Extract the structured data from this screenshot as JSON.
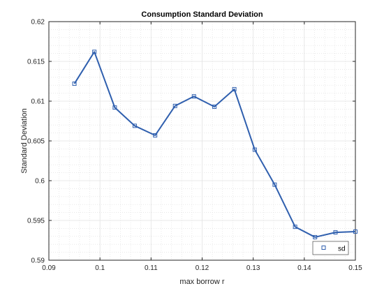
{
  "chart_data": {
    "type": "line",
    "title": "Consumption Standard Deviation",
    "xlabel": "max borrow r",
    "ylabel": "Standard Deviation",
    "xlim": [
      0.09,
      0.15
    ],
    "ylim": [
      0.59,
      0.62
    ],
    "xticks": [
      0.09,
      0.1,
      0.11,
      0.12,
      0.13,
      0.14,
      0.15
    ],
    "xtick_labels": [
      "0.09",
      "0.1",
      "0.11",
      "0.12",
      "0.13",
      "0.14",
      "0.15"
    ],
    "yticks": [
      0.59,
      0.595,
      0.6,
      0.605,
      0.61,
      0.615,
      0.62
    ],
    "ytick_labels": [
      "0.59",
      "0.595",
      "0.6",
      "0.605",
      "0.61",
      "0.615",
      "0.62"
    ],
    "grid": true,
    "minor_grid": true,
    "legend_position": "bottom-right",
    "series": [
      {
        "name": "sd",
        "color": "#2f5fae",
        "marker": "square",
        "x": [
          0.095,
          0.0989,
          0.1029,
          0.1068,
          0.1108,
          0.1147,
          0.1184,
          0.1224,
          0.1263,
          0.1303,
          0.1342,
          0.1382,
          0.1421,
          0.1461,
          0.15
        ],
        "y": [
          0.6122,
          0.6162,
          0.6092,
          0.6069,
          0.6057,
          0.6094,
          0.6106,
          0.6093,
          0.6115,
          0.6039,
          0.5995,
          0.5942,
          0.5929,
          0.5935,
          0.5936
        ]
      }
    ]
  }
}
